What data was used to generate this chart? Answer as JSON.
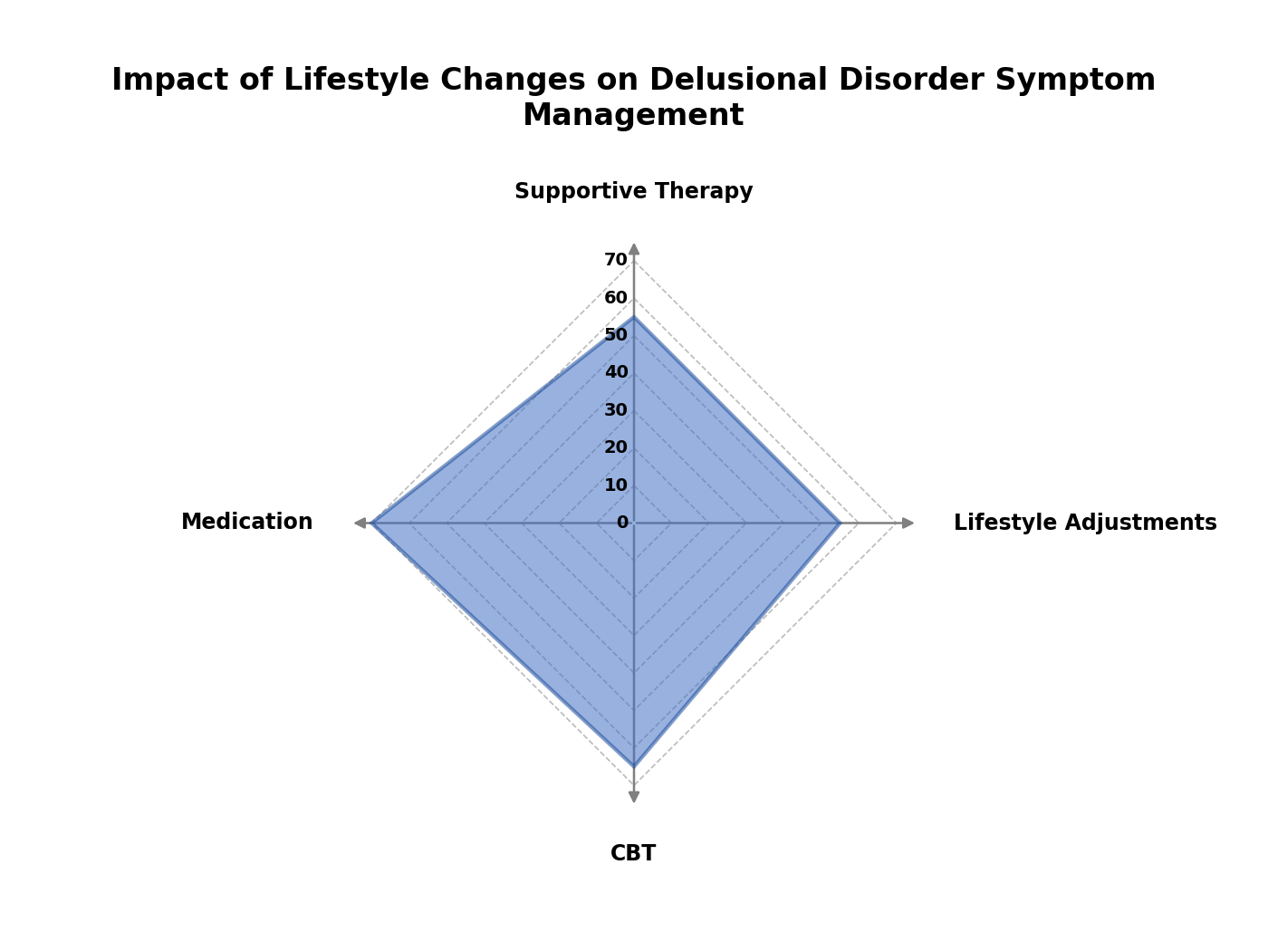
{
  "title": "Impact of Lifestyle Changes on Delusional Disorder Symptom\nManagement",
  "categories": [
    "Supportive Therapy",
    "Lifestyle Adjustments",
    "CBT",
    "Medication"
  ],
  "values": [
    55,
    55,
    65,
    70
  ],
  "max_value": 70,
  "tick_values": [
    0,
    10,
    20,
    30,
    40,
    50,
    60,
    70
  ],
  "fill_color": "#4472C4",
  "fill_alpha": 0.55,
  "line_color": "#1F4E9C",
  "line_width": 3.0,
  "grid_color": "#BBBBBB",
  "grid_style": "--",
  "bg_color": "#FFFFFF",
  "title_fontsize": 24,
  "label_fontsize": 17,
  "tick_fontsize": 14,
  "angles_deg": [
    90,
    0,
    270,
    180
  ],
  "label_offsets": {
    "Supportive Therapy": [
      0,
      1.0,
      "center",
      "bottom"
    ],
    "Lifestyle Adjustments": [
      1.0,
      0,
      "left",
      "center"
    ],
    "CBT": [
      0,
      -1.0,
      "center",
      "top"
    ],
    "Medication": [
      -1.0,
      0,
      "right",
      "center"
    ]
  }
}
